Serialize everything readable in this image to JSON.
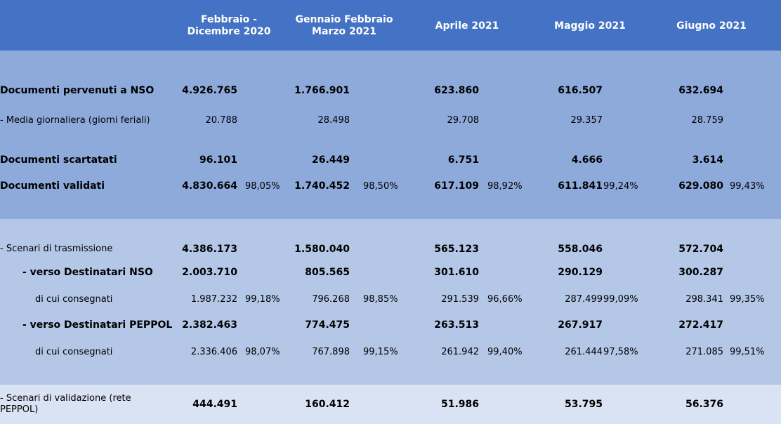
{
  "header": [
    "Febbraio - Dicembre 2020",
    "Gennaio Febbraio Marzo 2021",
    "Aprile 2021",
    "Maggio 2021",
    "Giugno 2021"
  ],
  "rows": {
    "pervenuti": {
      "label": "Documenti pervenuti a NSO",
      "values": [
        "4.926.765",
        "1.766.901",
        "623.860",
        "616.507",
        "632.694"
      ]
    },
    "media": {
      "label": "- Media giornaliera  (giorni  feriali)",
      "values": [
        "20.788",
        "28.498",
        "29.708",
        "29.357",
        "28.759"
      ]
    },
    "scartati": {
      "label": "Documenti scartatati",
      "values": [
        "96.101",
        "26.449",
        "6.751",
        "4.666",
        "3.614"
      ]
    },
    "validati": {
      "label": "Documenti validati",
      "values": [
        "4.830.664",
        "1.740.452",
        "617.109",
        "611.841",
        "629.080"
      ],
      "pct": [
        "98,05%",
        "98,50%",
        "98,92%",
        "99,24%",
        "99,43%"
      ]
    },
    "scenari_tx": {
      "label": "- Scenari di trasmissione",
      "values": [
        "4.386.173",
        "1.580.040",
        "565.123",
        "558.046",
        "572.704"
      ]
    },
    "verso_nso": {
      "label": "- verso Destinatari NSO",
      "values": [
        "2.003.710",
        "805.565",
        "301.610",
        "290.129",
        "300.287"
      ]
    },
    "consegnati_nso": {
      "label": "di cui consegnati",
      "values": [
        "1.987.232",
        "796.268",
        "291.539",
        "287.499",
        "298.341"
      ],
      "pct": [
        "99,18%",
        "98,85%",
        "96,66%",
        "99,09%",
        "99,35%"
      ]
    },
    "verso_peppol": {
      "label": "- verso Destinatari PEPPOL",
      "values": [
        "2.382.463",
        "774.475",
        "263.513",
        "267.917",
        "272.417"
      ]
    },
    "consegnati_peppol": {
      "label": "di cui consegnati",
      "values": [
        "2.336.406",
        "767.898",
        "261.942",
        "261.444",
        "271.085"
      ],
      "pct": [
        "98,07%",
        "99,15%",
        "99,40%",
        "97,58%",
        "99,51%"
      ]
    },
    "scenari_val": {
      "label": "- Scenari di validazione (rete PEPPOL)",
      "values": [
        "444.491",
        "160.412",
        "51.986",
        "53.795",
        "56.376"
      ]
    }
  }
}
